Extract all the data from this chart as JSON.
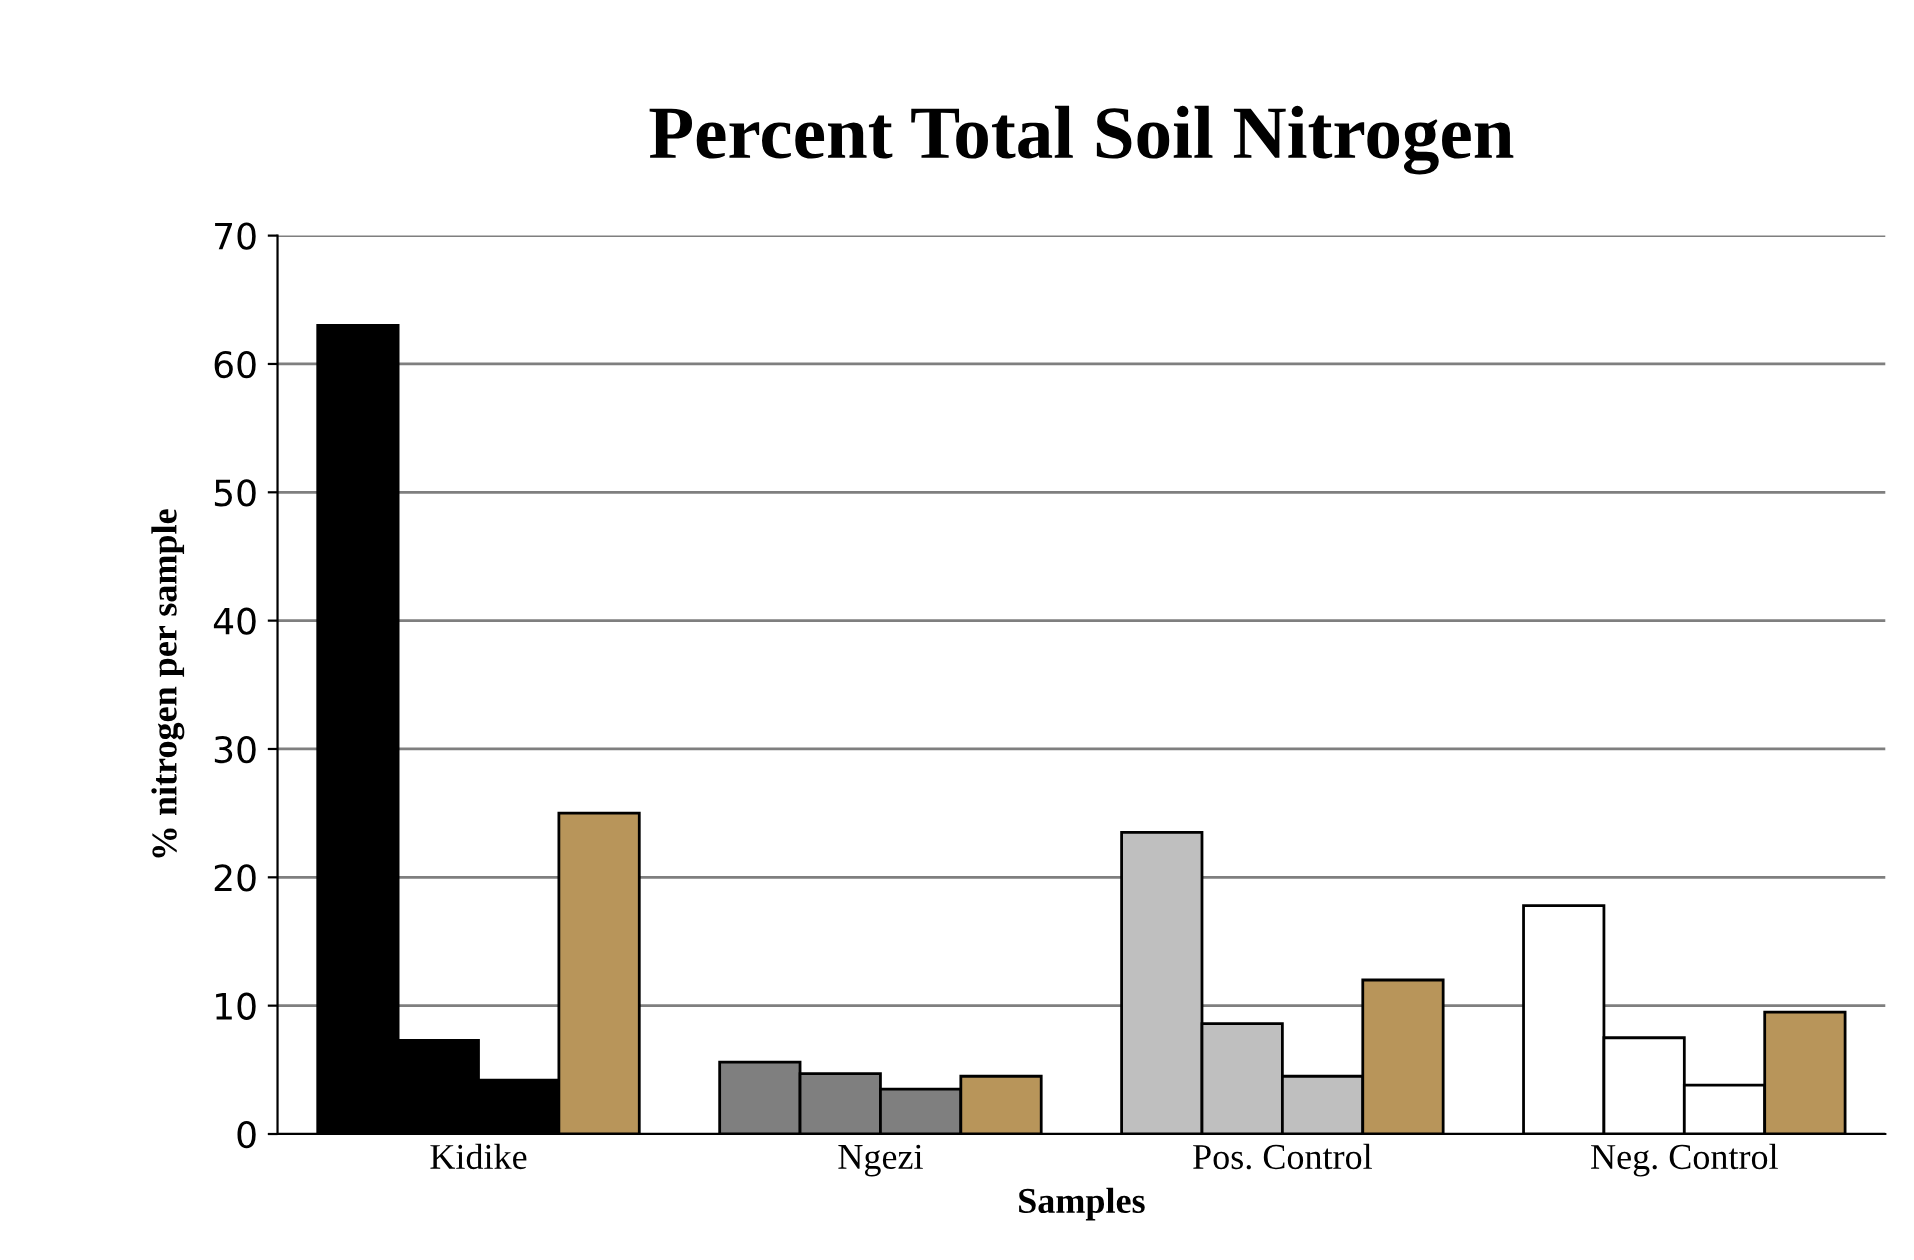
{
  "chart_data": {
    "type": "bar",
    "title": "Percent Total Soil Nitrogen",
    "xlabel": "Samples",
    "ylabel": "% nitrogen per sample",
    "categories": [
      "Kidike",
      "Ngezi",
      "Pos. Control",
      "Neg. Control"
    ],
    "series": [
      {
        "colors": [
          "#000000",
          "#7f7f7f",
          "#bfbfbf",
          "#ffffff"
        ],
        "values": [
          63,
          5.6,
          23.5,
          17.8
        ]
      },
      {
        "colors": [
          "#000000",
          "#7f7f7f",
          "#bfbfbf",
          "#ffffff"
        ],
        "values": [
          7.3,
          4.7,
          8.6,
          7.5
        ]
      },
      {
        "colors": [
          "#000000",
          "#7f7f7f",
          "#bfbfbf",
          "#ffffff"
        ],
        "values": [
          4.2,
          3.5,
          4.5,
          3.8
        ]
      },
      {
        "color": "#b8955a",
        "values": [
          25,
          4.5,
          12,
          9.5
        ]
      }
    ],
    "ylim": [
      0,
      70
    ],
    "yticks": [
      0,
      10,
      20,
      30,
      40,
      50,
      60,
      70
    ],
    "grid": "y",
    "legend": false
  }
}
